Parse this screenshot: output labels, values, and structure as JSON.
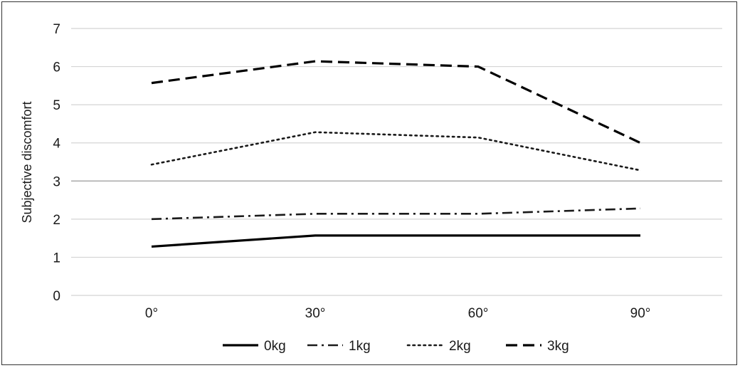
{
  "chart_data": {
    "type": "line",
    "title": "",
    "xlabel": "",
    "ylabel": "Subjective discomfort",
    "categories": [
      "0°",
      "30°",
      "60°",
      "90°"
    ],
    "ylim": [
      0,
      7
    ],
    "yticks": [
      "0",
      "1",
      "2",
      "3",
      "4",
      "5",
      "6",
      "7"
    ],
    "grid": true,
    "legend_position": "bottom",
    "series": [
      {
        "name": "0kg",
        "values": [
          1.28,
          1.57,
          1.57,
          1.57
        ],
        "style": "solid",
        "color": "#000000"
      },
      {
        "name": "1kg",
        "values": [
          2.0,
          2.14,
          2.14,
          2.28
        ],
        "style": "dash-dot",
        "color": "#1a1a1a"
      },
      {
        "name": "2kg",
        "values": [
          3.43,
          4.28,
          4.14,
          3.28
        ],
        "style": "dotted",
        "color": "#1a1a1a"
      },
      {
        "name": "3kg",
        "values": [
          5.57,
          6.14,
          6.0,
          4.0
        ],
        "style": "dashed",
        "color": "#000000"
      }
    ]
  }
}
